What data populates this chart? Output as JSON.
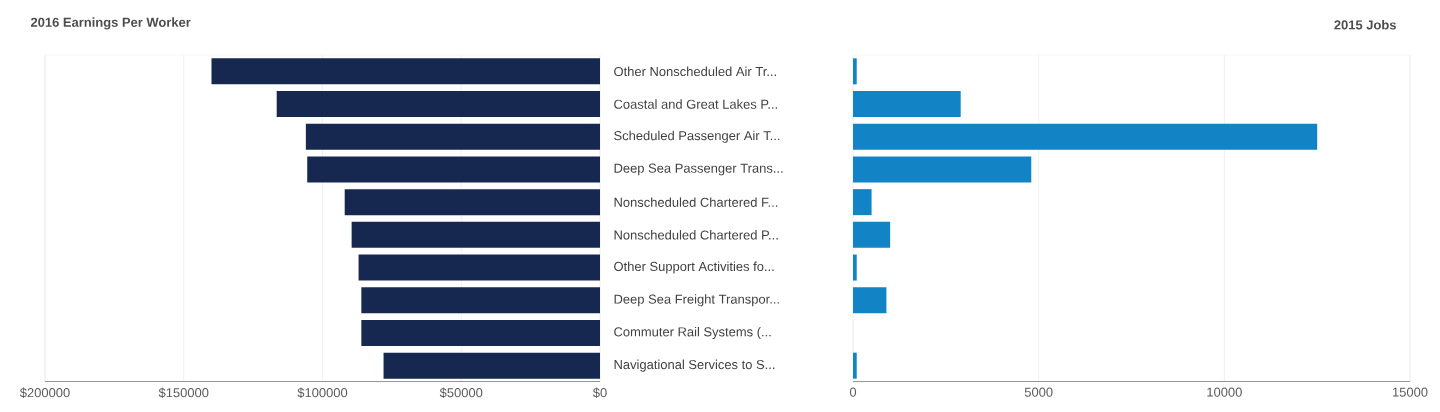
{
  "chart_data": [
    {
      "type": "bar",
      "orientation": "horizontal",
      "title": "2016 Earnings Per Worker",
      "categories": [
        "Other Nonscheduled Air Tr...",
        "Coastal and Great Lakes P...",
        "Scheduled Passenger Air T...",
        "Deep Sea Passenger Trans...",
        "Nonscheduled Chartered F...",
        "Nonscheduled Chartered P...",
        "Other Support Activities fo...",
        "Deep Sea Freight Transpor...",
        "Commuter Rail Systems  (...",
        "Navigational Services to S..."
      ],
      "values": [
        140000,
        116500,
        106000,
        105500,
        92000,
        89500,
        87000,
        86000,
        86000,
        78000
      ],
      "color": "#162850",
      "xlim": [
        200000,
        0
      ],
      "xticks": [
        {
          "value": 200000,
          "label": "$200000"
        },
        {
          "value": 150000,
          "label": "$150000"
        },
        {
          "value": 100000,
          "label": "$100000"
        },
        {
          "value": 50000,
          "label": "$50000"
        },
        {
          "value": 0,
          "label": "$0"
        }
      ],
      "grid": "x"
    },
    {
      "type": "bar",
      "orientation": "horizontal",
      "title": "2015 Jobs",
      "categories": [
        null,
        null,
        null,
        null,
        null,
        null,
        null,
        null,
        null,
        null
      ],
      "values": [
        100,
        2900,
        12500,
        4800,
        500,
        1000,
        100,
        900,
        0,
        100
      ],
      "color": "#1283c4",
      "xlim": [
        0,
        15000
      ],
      "xticks": [
        0,
        5000,
        10000,
        15000
      ],
      "grid": "x",
      "tick_labels": "x"
    }
  ]
}
